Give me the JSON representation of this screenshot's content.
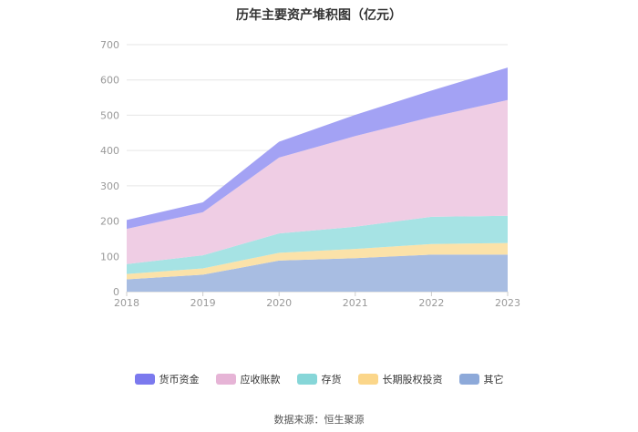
{
  "chart_data": {
    "type": "area",
    "stacked": true,
    "title": "历年主要资产堆积图（亿元）",
    "categories": [
      "2018",
      "2019",
      "2020",
      "2021",
      "2022",
      "2023"
    ],
    "ylim": [
      0,
      700
    ],
    "yticks": [
      0,
      100,
      200,
      300,
      400,
      500,
      600,
      700
    ],
    "grid": true,
    "legend_position": "bottom",
    "series": [
      {
        "name": "其它",
        "color": "#a8bde2",
        "legend_color": "#8da9d9",
        "values": [
          35,
          48,
          88,
          95,
          105,
          105
        ]
      },
      {
        "name": "长期股权投资",
        "color": "#fbe2a9",
        "legend_color": "#fbd68a",
        "values": [
          15,
          18,
          22,
          26,
          30,
          33
        ]
      },
      {
        "name": "存货",
        "color": "#a6e3e4",
        "legend_color": "#86d6d8",
        "values": [
          28,
          37,
          55,
          63,
          77,
          77
        ]
      },
      {
        "name": "应收账款",
        "color": "#efcde4",
        "legend_color": "#e6b4d6",
        "values": [
          100,
          122,
          215,
          257,
          283,
          328
        ]
      },
      {
        "name": "货币资金",
        "color": "#a3a2f4",
        "legend_color": "#7b79ee",
        "values": [
          25,
          28,
          45,
          60,
          75,
          92
        ]
      }
    ]
  },
  "source": "数据来源：恒生聚源"
}
